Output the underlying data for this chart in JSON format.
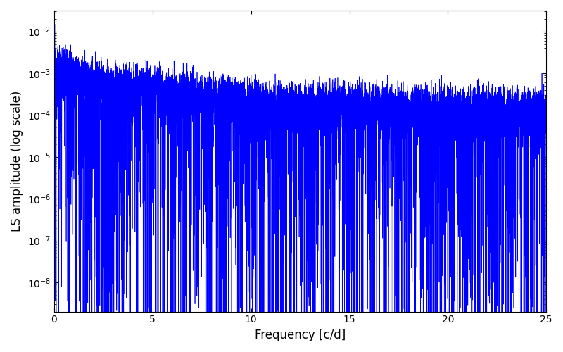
{
  "xlabel": "Frequency [c/d]",
  "ylabel": "LS amplitude (log scale)",
  "xlim": [
    0,
    25
  ],
  "ylim_log_min": -8.7,
  "ylim_log_max": -1.5,
  "line_color": "#0000ff",
  "linewidth": 0.5,
  "freq_max": 25.0,
  "n_points": 8000,
  "random_seed": 7,
  "figsize": [
    8.0,
    5.0
  ],
  "dpi": 100,
  "bg_color": "#ffffff",
  "xticks": [
    0,
    5,
    10,
    15,
    20,
    25
  ],
  "peak_amplitude": 0.015
}
